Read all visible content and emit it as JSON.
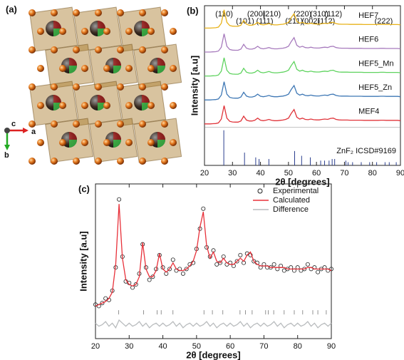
{
  "structure_panel": {
    "label": "(a)",
    "axis_labels": [
      "c",
      "a",
      "b"
    ]
  },
  "chart_data": [
    {
      "type": "line",
      "panel_label": "(b)",
      "xlabel": "2θ [degrees]",
      "ylabel": "Intensity [a.u]",
      "xlim": [
        20,
        90
      ],
      "xticks": [
        20,
        30,
        40,
        50,
        60,
        70,
        80,
        90
      ],
      "ylim": [
        0,
        100
      ],
      "legend": "inline",
      "x": [
        20,
        21,
        22,
        23,
        24,
        25,
        26,
        27,
        28,
        29,
        30,
        31,
        32,
        33,
        34,
        35,
        36,
        37,
        38,
        39,
        40,
        41,
        42,
        43,
        44,
        45,
        46,
        47,
        48,
        49,
        50,
        51,
        52,
        53,
        54,
        55,
        56,
        57,
        58,
        59,
        60,
        61,
        62,
        63,
        64,
        65,
        66,
        67,
        68,
        69,
        70,
        71,
        72,
        73,
        74,
        75,
        76,
        77,
        78,
        79,
        80,
        81,
        82,
        83,
        84,
        85,
        86,
        87,
        88,
        89,
        90
      ],
      "series": [
        {
          "name": "HEF7",
          "color": "#e8b21a",
          "values": [
            86,
            86,
            86,
            86.1,
            86.2,
            86.6,
            89,
            97.4,
            89.6,
            87.6,
            87.2,
            87.1,
            87.1,
            87.8,
            90.8,
            88.4,
            87.8,
            87.8,
            88.3,
            89.6,
            88.3,
            88,
            88.3,
            88.8,
            88.2,
            88,
            88,
            88.2,
            88.4,
            88.8,
            89.6,
            92.6,
            95,
            90.2,
            89,
            89.6,
            88.8,
            88.6,
            89,
            88.6,
            88.5,
            88.5,
            88.8,
            89,
            88.8,
            89.4,
            89.6,
            88.8,
            88.5,
            88.4,
            88.4,
            88.4,
            88.3,
            88.3,
            88.3,
            88.3,
            88.3,
            88.2,
            88.2,
            88.2,
            88.2,
            88.2,
            88.2,
            88.3,
            88.3,
            88.2,
            88.2,
            88.2,
            88.2,
            88.2,
            88
          ]
        },
        {
          "name": "HEF6",
          "color": "#a77bbd",
          "values": [
            71,
            71,
            71,
            71.1,
            71.2,
            71.6,
            74,
            82.4,
            74.6,
            72.6,
            72.2,
            72.1,
            72.1,
            72.8,
            75.8,
            73.4,
            72.8,
            72.8,
            73.3,
            74.6,
            73.3,
            73,
            73.3,
            73.8,
            73.2,
            73,
            73,
            73.2,
            73.4,
            73.8,
            74.6,
            77.6,
            80,
            75.2,
            74,
            74.6,
            73.8,
            73.6,
            74,
            73.6,
            73.5,
            73.5,
            73.8,
            74,
            73.8,
            74.4,
            74.6,
            73.8,
            73.5,
            73.4,
            73.4,
            73.4,
            73.3,
            73.3,
            73.3,
            73.3,
            73.3,
            73.2,
            73.2,
            73.2,
            73.2,
            73.2,
            73.2,
            73.3,
            73.3,
            73.2,
            73.2,
            73.2,
            73.2,
            73.2,
            73
          ]
        },
        {
          "name": "HEF5_Mn",
          "color": "#5fd35f",
          "values": [
            56,
            56,
            56,
            56.1,
            56.2,
            56.6,
            59,
            67.4,
            59.6,
            57.6,
            57.2,
            57.1,
            57.1,
            57.8,
            60.8,
            58.4,
            57.8,
            57.8,
            58.3,
            59.6,
            58.3,
            58,
            58.3,
            58.8,
            58.2,
            58,
            58,
            58.2,
            58.4,
            58.8,
            59.6,
            62.6,
            65,
            60.2,
            59,
            59.6,
            58.8,
            58.6,
            59,
            58.6,
            58.5,
            58.5,
            58.8,
            59,
            58.8,
            59.4,
            59.6,
            58.8,
            58.5,
            58.4,
            58.4,
            58.4,
            58.3,
            58.3,
            58.3,
            58.3,
            58.3,
            58.2,
            58.2,
            58.2,
            58.2,
            58.2,
            58.2,
            58.3,
            58.3,
            58.2,
            58.2,
            58.2,
            58.2,
            58.2,
            58
          ]
        },
        {
          "name": "HEF5_Zn",
          "color": "#3f78b5",
          "values": [
            41,
            41,
            41,
            41.1,
            41.2,
            41.6,
            44,
            52.4,
            44.6,
            42.6,
            42.2,
            42.1,
            42.1,
            42.8,
            45.8,
            43.4,
            42.8,
            42.8,
            43.3,
            44.6,
            43.3,
            43,
            43.3,
            43.8,
            43.2,
            43,
            43,
            43.2,
            43.4,
            43.8,
            44.6,
            47.6,
            50,
            45.2,
            44,
            44.6,
            43.8,
            43.6,
            44,
            43.6,
            43.5,
            43.5,
            43.8,
            44,
            43.8,
            44.4,
            44.6,
            43.8,
            43.5,
            43.4,
            43.4,
            43.4,
            43.3,
            43.3,
            43.3,
            43.3,
            43.3,
            43.2,
            43.2,
            43.2,
            43.2,
            43.2,
            43.2,
            43.3,
            43.3,
            43.2,
            43.2,
            43.2,
            43.2,
            43.2,
            43
          ]
        },
        {
          "name": "MEF4",
          "color": "#e0343a",
          "values": [
            26,
            26,
            26,
            26.1,
            26.2,
            26.6,
            29,
            37.4,
            29.6,
            27.6,
            27.2,
            27.1,
            27.1,
            27.8,
            30.8,
            28.4,
            27.8,
            27.8,
            28.3,
            29.6,
            28.3,
            28,
            28.3,
            28.8,
            28.2,
            28,
            28,
            28.2,
            28.4,
            28.8,
            29.6,
            32.6,
            35,
            30.2,
            29,
            29.6,
            28.8,
            28.6,
            29,
            28.6,
            28.5,
            28.5,
            28.8,
            29,
            28.8,
            29.4,
            29.6,
            28.8,
            28.5,
            28.4,
            28.4,
            28.4,
            28.3,
            28.3,
            28.3,
            28.3,
            28.3,
            28.2,
            28.2,
            28.2,
            28.2,
            28.2,
            28.2,
            28.3,
            28.3,
            28.2,
            28.2,
            28.2,
            28.2,
            28.2,
            28
          ]
        },
        {
          "name": "ZnF₂ ICSD#9169",
          "color": "#2b3f8f",
          "style": "stick",
          "x": [
            26.9,
            34.3,
            38.3,
            39.5,
            43.0,
            52.2,
            54.7,
            57.8,
            61.5,
            62.9,
            64.5,
            65.6,
            66.5,
            70.5,
            71.3,
            72.9,
            76.0,
            79.0,
            81.5,
            84.5,
            86.0,
            88.5
          ],
          "values": [
            22,
            8,
            5,
            4,
            4,
            9,
            6,
            5,
            3,
            3,
            3,
            4,
            4,
            3,
            2,
            2,
            2,
            2,
            2,
            2,
            2,
            2
          ]
        }
      ],
      "annotations": [
        {
          "text": "(110)",
          "x": 27
        },
        {
          "text": "(101)",
          "x": 34.5
        },
        {
          "text": "(200)",
          "x": 38.5
        },
        {
          "text": "(111)",
          "x": 41.5
        },
        {
          "text": "(210)",
          "x": 44
        },
        {
          "text": "(211)",
          "x": 52
        },
        {
          "text": "(220)",
          "x": 55
        },
        {
          "text": "(002)",
          "x": 58
        },
        {
          "text": "(310)",
          "x": 61
        },
        {
          "text": "(112)",
          "x": 63.5
        },
        {
          "text": "(112)",
          "x": 66
        },
        {
          "text": "(222)",
          "x": 84
        }
      ]
    },
    {
      "type": "line",
      "panel_label": "(c)",
      "xlabel": "2θ [degrees]",
      "ylabel": "Intensity [a.u]",
      "xlim": [
        20,
        90
      ],
      "xticks": [
        20,
        30,
        40,
        50,
        60,
        70,
        80,
        90
      ],
      "ylim": [
        0,
        100
      ],
      "legend": "upper right",
      "x": [
        20,
        21,
        22,
        23,
        24,
        25,
        26,
        27,
        28,
        29,
        30,
        31,
        32,
        33,
        34,
        35,
        36,
        37,
        38,
        39,
        40,
        41,
        42,
        43,
        44,
        45,
        46,
        47,
        48,
        49,
        50,
        51,
        52,
        53,
        54,
        55,
        56,
        57,
        58,
        59,
        60,
        61,
        62,
        63,
        64,
        65,
        66,
        67,
        68,
        69,
        70,
        71,
        72,
        73,
        74,
        75,
        76,
        77,
        78,
        79,
        80,
        81,
        82,
        83,
        84,
        85,
        86,
        87,
        88,
        89,
        90
      ],
      "series": [
        {
          "name": "Experimental",
          "color": "#222222",
          "marker": "circle",
          "values": [
            22,
            21,
            23,
            26,
            25,
            31,
            46,
            90,
            53,
            37,
            36,
            33,
            35,
            42,
            61,
            46,
            38,
            40,
            45,
            54,
            46,
            42,
            45,
            51,
            44,
            45,
            42,
            45,
            48,
            49,
            58,
            71,
            84,
            59,
            53,
            57,
            48,
            49,
            53,
            48,
            49,
            47,
            50,
            54,
            49,
            55,
            54,
            50,
            49,
            46,
            48,
            46,
            46,
            48,
            45,
            47,
            44,
            45,
            46,
            44,
            46,
            44,
            45,
            48,
            45,
            46,
            43,
            45,
            46,
            44,
            45
          ]
        },
        {
          "name": "Calculated",
          "color": "#e8313a",
          "values": [
            21,
            22,
            23,
            24,
            26,
            30,
            48,
            87,
            52,
            38,
            35,
            34,
            35,
            40,
            62,
            45,
            40,
            40,
            44,
            55,
            45,
            43,
            45,
            49,
            45,
            44,
            44,
            45,
            47,
            50,
            57,
            72,
            82,
            60,
            52,
            56,
            50,
            49,
            52,
            49,
            48,
            48,
            50,
            52,
            50,
            54,
            56,
            50,
            48,
            47,
            47,
            47,
            46,
            46,
            46,
            46,
            46,
            45,
            45,
            45,
            45,
            45,
            45,
            46,
            46,
            45,
            45,
            45,
            45,
            45,
            44
          ]
        },
        {
          "name": "Difference",
          "color": "#b9bcbe",
          "values": [
            10,
            8,
            9,
            11,
            8,
            10,
            7,
            12,
            10,
            8,
            10,
            8,
            9,
            11,
            8,
            10,
            7,
            9,
            10,
            8,
            10,
            8,
            9,
            11,
            8,
            10,
            7,
            9,
            10,
            8,
            10,
            8,
            9,
            11,
            8,
            10,
            7,
            9,
            10,
            8,
            10,
            8,
            9,
            11,
            8,
            10,
            7,
            9,
            10,
            8,
            10,
            8,
            9,
            11,
            8,
            10,
            7,
            9,
            10,
            8,
            10,
            8,
            9,
            11,
            8,
            10,
            7,
            9,
            10,
            8,
            10
          ]
        }
      ],
      "bragg_positions": [
        26.9,
        34.3,
        38.3,
        39.5,
        43.0,
        52.2,
        54.7,
        57.8,
        62.9,
        64.5,
        66.5,
        70.5,
        71.3,
        72.9,
        76.0,
        79.0,
        81.5,
        84.5,
        86.0,
        88.5
      ]
    }
  ]
}
